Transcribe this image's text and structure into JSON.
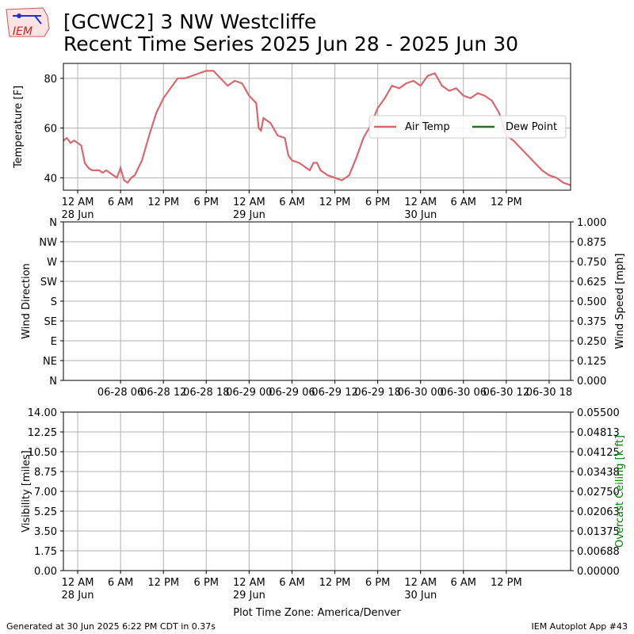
{
  "header": {
    "title_line1": "[GCWC2] 3 NW Westcliffe",
    "title_line2": "Recent Time Series 2025 Jun 28 - 2025 Jun 30"
  },
  "logo": {
    "text": "IEM"
  },
  "footer": {
    "generated": "Generated at 30 Jun 2025 6:22 PM CDT in 0.37s",
    "app": "IEM Autoplot App #43",
    "timezone_label": "Plot Time Zone: America/Denver"
  },
  "colors": {
    "air_temp": "#d9676e",
    "dew_point": "#2e6b2e",
    "ceiling_axis": "#008000",
    "grid": "#b0b0b0"
  },
  "chart_data": [
    {
      "type": "line",
      "name": "temperature-panel",
      "ylabel": "Temperature [F]",
      "xlim": [
        "2025-06-27T22:00",
        "2025-06-30T21:00"
      ],
      "ylim": [
        35,
        86
      ],
      "yticks": [
        40,
        60,
        80
      ],
      "xticks": [
        {
          "t": "2025-06-28T00:00",
          "label1": "12 AM",
          "label2": "28 Jun"
        },
        {
          "t": "2025-06-28T06:00",
          "label1": "6 AM",
          "label2": ""
        },
        {
          "t": "2025-06-28T12:00",
          "label1": "12 PM",
          "label2": ""
        },
        {
          "t": "2025-06-28T18:00",
          "label1": "6 PM",
          "label2": ""
        },
        {
          "t": "2025-06-29T00:00",
          "label1": "12 AM",
          "label2": "29 Jun"
        },
        {
          "t": "2025-06-29T06:00",
          "label1": "6 AM",
          "label2": ""
        },
        {
          "t": "2025-06-29T12:00",
          "label1": "12 PM",
          "label2": ""
        },
        {
          "t": "2025-06-29T18:00",
          "label1": "6 PM",
          "label2": ""
        },
        {
          "t": "2025-06-30T00:00",
          "label1": "12 AM",
          "label2": "30 Jun"
        },
        {
          "t": "2025-06-30T06:00",
          "label1": "6 AM",
          "label2": ""
        },
        {
          "t": "2025-06-30T12:00",
          "label1": "12 PM",
          "label2": ""
        }
      ],
      "legend": {
        "position": "center-right",
        "entries": [
          "Air Temp",
          "Dew Point"
        ]
      },
      "grid": true,
      "series": [
        {
          "name": "Air Temp",
          "points": [
            [
              "2025-06-27T22:00",
              55
            ],
            [
              "2025-06-27T22:30",
              56
            ],
            [
              "2025-06-27T23:00",
              54
            ],
            [
              "2025-06-27T23:30",
              55
            ],
            [
              "2025-06-28T00:00",
              54
            ],
            [
              "2025-06-28T00:30",
              53
            ],
            [
              "2025-06-28T01:00",
              46
            ],
            [
              "2025-06-28T01:30",
              44
            ],
            [
              "2025-06-28T02:00",
              43
            ],
            [
              "2025-06-28T03:00",
              43
            ],
            [
              "2025-06-28T03:30",
              42
            ],
            [
              "2025-06-28T04:00",
              43
            ],
            [
              "2025-06-28T04:30",
              42
            ],
            [
              "2025-06-28T05:00",
              41
            ],
            [
              "2025-06-28T05:30",
              40
            ],
            [
              "2025-06-28T06:00",
              44
            ],
            [
              "2025-06-28T06:30",
              39
            ],
            [
              "2025-06-28T07:00",
              38
            ],
            [
              "2025-06-28T07:30",
              40
            ],
            [
              "2025-06-28T08:00",
              41
            ],
            [
              "2025-06-28T09:00",
              47
            ],
            [
              "2025-06-28T10:00",
              57
            ],
            [
              "2025-06-28T11:00",
              66
            ],
            [
              "2025-06-28T12:00",
              72
            ],
            [
              "2025-06-28T13:00",
              76
            ],
            [
              "2025-06-28T14:00",
              80
            ],
            [
              "2025-06-28T15:00",
              80
            ],
            [
              "2025-06-28T16:00",
              81
            ],
            [
              "2025-06-28T17:00",
              82
            ],
            [
              "2025-06-28T18:00",
              83
            ],
            [
              "2025-06-28T19:00",
              83
            ],
            [
              "2025-06-28T20:00",
              80
            ],
            [
              "2025-06-28T21:00",
              77
            ],
            [
              "2025-06-28T22:00",
              79
            ],
            [
              "2025-06-28T23:00",
              78
            ],
            [
              "2025-06-29T00:00",
              73
            ],
            [
              "2025-06-29T01:00",
              70
            ],
            [
              "2025-06-29T01:20",
              60
            ],
            [
              "2025-06-29T01:40",
              59
            ],
            [
              "2025-06-29T02:00",
              64
            ],
            [
              "2025-06-29T03:00",
              62
            ],
            [
              "2025-06-29T04:00",
              57
            ],
            [
              "2025-06-29T05:00",
              56
            ],
            [
              "2025-06-29T05:30",
              49
            ],
            [
              "2025-06-29T06:00",
              47
            ],
            [
              "2025-06-29T07:00",
              46
            ],
            [
              "2025-06-29T08:00",
              44
            ],
            [
              "2025-06-29T08:30",
              43
            ],
            [
              "2025-06-29T09:00",
              46
            ],
            [
              "2025-06-29T09:30",
              46
            ],
            [
              "2025-06-29T10:00",
              43
            ],
            [
              "2025-06-29T11:00",
              41
            ],
            [
              "2025-06-29T12:00",
              40
            ],
            [
              "2025-06-29T13:00",
              39
            ],
            [
              "2025-06-29T14:00",
              41
            ],
            [
              "2025-06-29T15:00",
              48
            ],
            [
              "2025-06-29T16:00",
              56
            ],
            [
              "2025-06-29T17:00",
              61
            ],
            [
              "2025-06-29T18:00",
              68
            ],
            [
              "2025-06-29T19:00",
              72
            ],
            [
              "2025-06-29T20:00",
              77
            ],
            [
              "2025-06-29T21:00",
              76
            ],
            [
              "2025-06-29T22:00",
              78
            ],
            [
              "2025-06-29T23:00",
              79
            ],
            [
              "2025-06-30T00:00",
              77
            ],
            [
              "2025-06-30T01:00",
              81
            ],
            [
              "2025-06-30T02:00",
              82
            ],
            [
              "2025-06-30T03:00",
              77
            ],
            [
              "2025-06-30T04:00",
              75
            ],
            [
              "2025-06-30T05:00",
              76
            ],
            [
              "2025-06-30T06:00",
              73
            ],
            [
              "2025-06-30T07:00",
              72
            ],
            [
              "2025-06-30T08:00",
              74
            ],
            [
              "2025-06-30T09:00",
              73
            ],
            [
              "2025-06-30T10:00",
              71
            ],
            [
              "2025-06-30T11:00",
              66
            ],
            [
              "2025-06-30T12:00",
              57
            ],
            [
              "2025-06-30T13:00",
              55
            ],
            [
              "2025-06-30T14:00",
              52
            ],
            [
              "2025-06-30T15:00",
              49
            ],
            [
              "2025-06-30T16:00",
              46
            ],
            [
              "2025-06-30T17:00",
              43
            ],
            [
              "2025-06-30T18:00",
              41
            ],
            [
              "2025-06-30T19:00",
              40
            ],
            [
              "2025-06-30T20:00",
              38
            ],
            [
              "2025-06-30T21:00",
              37
            ]
          ]
        },
        {
          "name": "Dew Point",
          "points": []
        }
      ]
    },
    {
      "type": "line",
      "name": "wind-panel",
      "ylabel": "Wind Direction",
      "ylabel_right": "Wind Speed [mph]",
      "yticks_left": [
        "N",
        "NE",
        "E",
        "SE",
        "S",
        "SW",
        "W",
        "NW",
        "N"
      ],
      "yticks_right": [
        "0.000",
        "0.125",
        "0.250",
        "0.375",
        "0.500",
        "0.625",
        "0.750",
        "0.875",
        "1.000"
      ],
      "ylim_right": [
        0,
        1
      ],
      "xlim": [
        "2025-06-27T22:00",
        "2025-06-30T21:00"
      ],
      "xticks": [
        {
          "t": "2025-06-28T06:00",
          "label": "06-28 06"
        },
        {
          "t": "2025-06-28T12:00",
          "label": "06-28 12"
        },
        {
          "t": "2025-06-28T18:00",
          "label": "06-28 18"
        },
        {
          "t": "2025-06-29T00:00",
          "label": "06-29 00"
        },
        {
          "t": "2025-06-29T06:00",
          "label": "06-29 06"
        },
        {
          "t": "2025-06-29T12:00",
          "label": "06-29 12"
        },
        {
          "t": "2025-06-29T18:00",
          "label": "06-29 18"
        },
        {
          "t": "2025-06-30T00:00",
          "label": "06-30 00"
        },
        {
          "t": "2025-06-30T06:00",
          "label": "06-30 06"
        },
        {
          "t": "2025-06-30T12:00",
          "label": "06-30 12"
        },
        {
          "t": "2025-06-30T18:00",
          "label": "06-30 18"
        }
      ],
      "grid": true,
      "series": []
    },
    {
      "type": "line",
      "name": "visibility-panel",
      "ylabel": "Visibility [miles]",
      "ylabel_right": "Overcast Ceiling [k ft]",
      "yticks_left": [
        "0.00",
        "1.75",
        "3.50",
        "5.25",
        "7.00",
        "8.75",
        "10.50",
        "12.25",
        "14.00"
      ],
      "yticks_right": [
        "0.00000",
        "0.00688",
        "0.01375",
        "0.02063",
        "0.02750",
        "0.03438",
        "0.04125",
        "0.04813",
        "0.05500"
      ],
      "ylim": [
        0,
        14
      ],
      "ylim_right": [
        0,
        0.055
      ],
      "xlim": [
        "2025-06-27T22:00",
        "2025-06-30T21:00"
      ],
      "xticks": [
        {
          "t": "2025-06-28T00:00",
          "label1": "12 AM",
          "label2": "28 Jun"
        },
        {
          "t": "2025-06-28T06:00",
          "label1": "6 AM",
          "label2": ""
        },
        {
          "t": "2025-06-28T12:00",
          "label1": "12 PM",
          "label2": ""
        },
        {
          "t": "2025-06-28T18:00",
          "label1": "6 PM",
          "label2": ""
        },
        {
          "t": "2025-06-29T00:00",
          "label1": "12 AM",
          "label2": "29 Jun"
        },
        {
          "t": "2025-06-29T06:00",
          "label1": "6 AM",
          "label2": ""
        },
        {
          "t": "2025-06-29T12:00",
          "label1": "12 PM",
          "label2": ""
        },
        {
          "t": "2025-06-29T18:00",
          "label1": "6 PM",
          "label2": ""
        },
        {
          "t": "2025-06-30T00:00",
          "label1": "12 AM",
          "label2": "30 Jun"
        },
        {
          "t": "2025-06-30T06:00",
          "label1": "6 AM",
          "label2": ""
        },
        {
          "t": "2025-06-30T12:00",
          "label1": "12 PM",
          "label2": ""
        }
      ],
      "grid": true,
      "series": []
    }
  ]
}
